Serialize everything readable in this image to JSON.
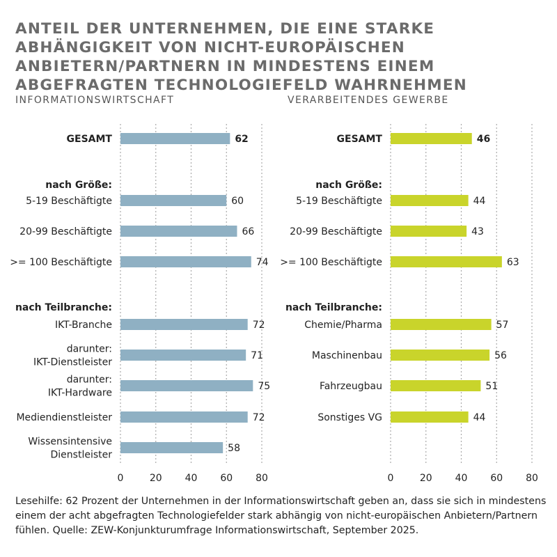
{
  "title": "ANTEIL DER UNTERNEHMEN, DIE EINE STARKE ABHÄNGIGKEIT VON NICHT-EUROPÄISCHEN ANBIETERN/PARTNERN IN MINDESTENS EINEM ABGEFRAGTEN TECHNOLOGIEFELD WAHRNEHMEN",
  "footnote": "Lesehilfe: 62 Prozent der Unternehmen in der Informationswirtschaft geben an, dass sie sich in mindestens einem der acht abgefragten Technologiefelder stark abhängig von nicht-europäischen Anbietern/Partnern fühlen. Quelle: ZEW-Konjunkturumfrage Informationswirtschaft, September 2025.",
  "chart_data": [
    {
      "type": "bar",
      "orientation": "horizontal",
      "title": "INFORMATIONSWIRTSCHAFT",
      "color": "#8fb0c3",
      "xlim": [
        0,
        80
      ],
      "xticks": [
        0,
        20,
        40,
        60,
        80
      ],
      "grid": true,
      "rows": [
        {
          "label": "GESAMT",
          "value": 62,
          "bold": true
        },
        {
          "label": "nach Größe:",
          "heading": true
        },
        {
          "label": "5-19 Beschäftigte",
          "value": 60
        },
        {
          "label": "20-99 Beschäftigte",
          "value": 66
        },
        {
          "label": ">= 100 Beschäftigte",
          "value": 74
        },
        {
          "label": "nach Teilbranche:",
          "heading": true
        },
        {
          "label": "IKT-Branche",
          "value": 72
        },
        {
          "label": "darunter:\nIKT-Dienstleister",
          "value": 71
        },
        {
          "label": "darunter:\nIKT-Hardware",
          "value": 75
        },
        {
          "label": "Mediendienstleister",
          "value": 72
        },
        {
          "label": "Wissensintensive\nDienstleister",
          "value": 58
        }
      ]
    },
    {
      "type": "bar",
      "orientation": "horizontal",
      "title": "VERARBEITENDES GEWERBE",
      "color": "#c9d42b",
      "xlim": [
        0,
        80
      ],
      "xticks": [
        0,
        20,
        40,
        60,
        80
      ],
      "grid": true,
      "rows": [
        {
          "label": "GESAMT",
          "value": 46,
          "bold": true
        },
        {
          "label": "nach Größe:",
          "heading": true
        },
        {
          "label": "5-19 Beschäftigte",
          "value": 44
        },
        {
          "label": "20-99 Beschäftigte",
          "value": 43
        },
        {
          "label": ">= 100 Beschäftigte",
          "value": 63
        },
        {
          "label": "nach Teilbranche:",
          "heading": true
        },
        {
          "label": "Chemie/Pharma",
          "value": 57
        },
        {
          "label": "Maschinenbau",
          "value": 56
        },
        {
          "label": "Fahrzeugbau",
          "value": 51
        },
        {
          "label": "Sonstiges VG",
          "value": 44
        }
      ]
    }
  ]
}
